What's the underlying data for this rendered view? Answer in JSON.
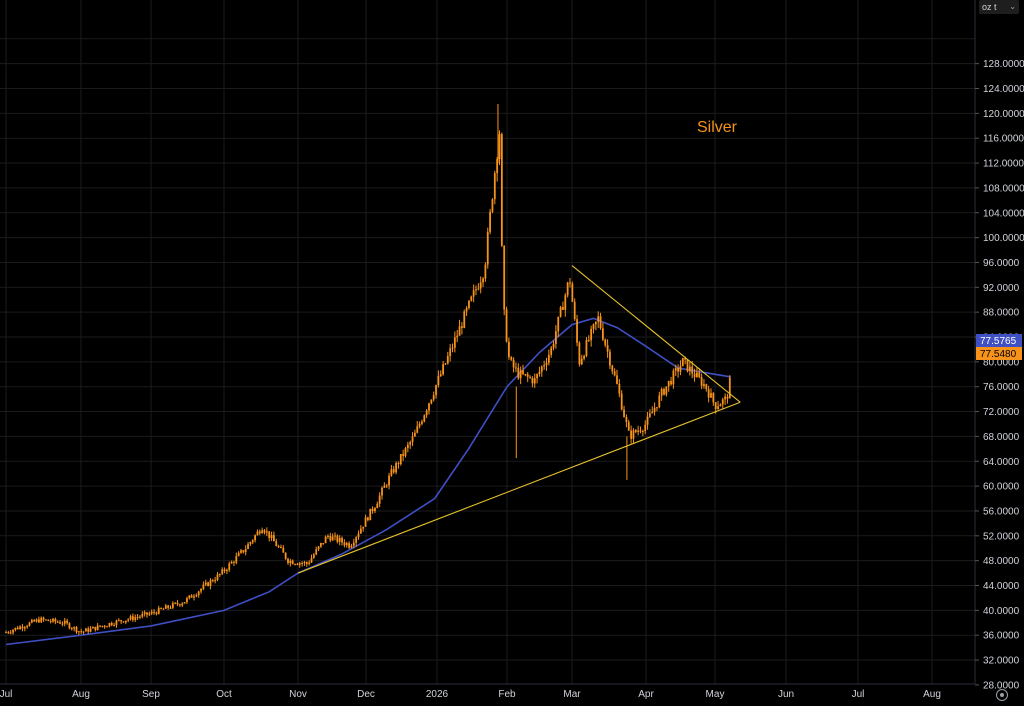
{
  "header": {
    "unit_label": "oz t"
  },
  "annotation": {
    "text": "Silver",
    "color": "#f7931a"
  },
  "price_tags": {
    "ma": "77.5765",
    "last": "77.5480"
  },
  "colors": {
    "candle": "#f7931a",
    "ma": "#3f4fc4",
    "trendline": "#e5c12b",
    "ma_tag_bg": "#3f4fc4",
    "last_tag_bg": "#f7931a",
    "grid": "#1b1b1b",
    "background": "#000000"
  },
  "chart_data": {
    "type": "candlestick",
    "x_axis": {
      "labels": [
        "Jul",
        "Aug",
        "Sep",
        "Oct",
        "Nov",
        "Dec",
        "2026",
        "Feb",
        "Mar",
        "Apr",
        "May",
        "Jun",
        "Jul",
        "Aug"
      ]
    },
    "y_axis": {
      "min": 24,
      "max": 132,
      "step": 4,
      "labels": [
        "28.0000",
        "32.0000",
        "36.0000",
        "40.0000",
        "44.0000",
        "48.0000",
        "52.0000",
        "56.0000",
        "60.0000",
        "64.0000",
        "68.0000",
        "72.0000",
        "76.0000",
        "80.0000",
        "84.0000",
        "88.0000",
        "92.0000",
        "96.0000",
        "100.0000",
        "104.0000",
        "108.0000",
        "112.0000",
        "116.0000",
        "120.0000",
        "124.0000",
        "128.0000"
      ]
    },
    "price_path": [
      [
        "2025-07-01",
        36.5
      ],
      [
        "2025-07-15",
        38.5
      ],
      [
        "2025-07-25",
        38.0
      ],
      [
        "2025-08-01",
        36.5
      ],
      [
        "2025-08-15",
        38.0
      ],
      [
        "2025-09-01",
        39.5
      ],
      [
        "2025-09-15",
        41.5
      ],
      [
        "2025-09-30",
        46.0
      ],
      [
        "2025-10-10",
        50.0
      ],
      [
        "2025-10-17",
        53.5
      ],
      [
        "2025-10-28",
        48.0
      ],
      [
        "2025-11-05",
        47.5
      ],
      [
        "2025-11-14",
        52.0
      ],
      [
        "2025-11-24",
        50.5
      ],
      [
        "2025-12-05",
        57.0
      ],
      [
        "2025-12-12",
        62.0
      ],
      [
        "2025-12-22",
        68.0
      ],
      [
        "2025-12-29",
        74.0
      ],
      [
        "2026-01-05",
        80.0
      ],
      [
        "2026-01-14",
        88.0
      ],
      [
        "2026-01-22",
        95.0
      ],
      [
        "2026-01-27",
        112.0
      ],
      [
        "2026-01-29",
        118.0
      ],
      [
        "2026-01-30",
        90.0
      ],
      [
        "2026-02-02",
        80.0
      ],
      [
        "2026-02-06",
        78.0
      ],
      [
        "2026-02-13",
        77.0
      ],
      [
        "2026-02-20",
        82.0
      ],
      [
        "2026-02-28",
        93.5
      ],
      [
        "2026-03-04",
        80.0
      ],
      [
        "2026-03-12",
        87.0
      ],
      [
        "2026-03-20",
        76.0
      ],
      [
        "2026-03-25",
        68.0
      ],
      [
        "2026-04-01",
        70.0
      ],
      [
        "2026-04-08",
        75.0
      ],
      [
        "2026-04-17",
        80.0
      ],
      [
        "2026-04-27",
        76.0
      ],
      [
        "2026-05-01",
        73.0
      ],
      [
        "2026-05-06",
        74.0
      ],
      [
        "2026-05-08",
        77.55
      ]
    ],
    "series": [
      {
        "type": "line",
        "points": [
          [
            "2025-07-01",
            34.5
          ],
          [
            "2025-08-01",
            36.0
          ],
          [
            "2025-09-01",
            37.5
          ],
          [
            "2025-10-01",
            40.0
          ],
          [
            "2025-10-20",
            43.0
          ],
          [
            "2025-11-01",
            46.0
          ],
          [
            "2025-11-20",
            49.0
          ],
          [
            "2025-12-10",
            53.0
          ],
          [
            "2025-12-31",
            58.0
          ],
          [
            "2026-01-15",
            66.0
          ],
          [
            "2026-02-01",
            76.0
          ],
          [
            "2026-02-15",
            81.5
          ],
          [
            "2026-03-01",
            86.0
          ],
          [
            "2026-03-10",
            87.0
          ],
          [
            "2026-03-20",
            85.5
          ],
          [
            "2026-04-01",
            82.5
          ],
          [
            "2026-04-15",
            79.0
          ],
          [
            "2026-05-01",
            78.0
          ],
          [
            "2026-05-08",
            77.58
          ]
        ]
      }
    ],
    "trendlines": [
      {
        "from": [
          "2025-11-01",
          46.0
        ],
        "to": [
          "2026-05-12",
          73.5
        ]
      },
      {
        "from": [
          "2026-03-01",
          95.5
        ],
        "to": [
          "2026-05-12",
          73.5
        ]
      }
    ]
  }
}
